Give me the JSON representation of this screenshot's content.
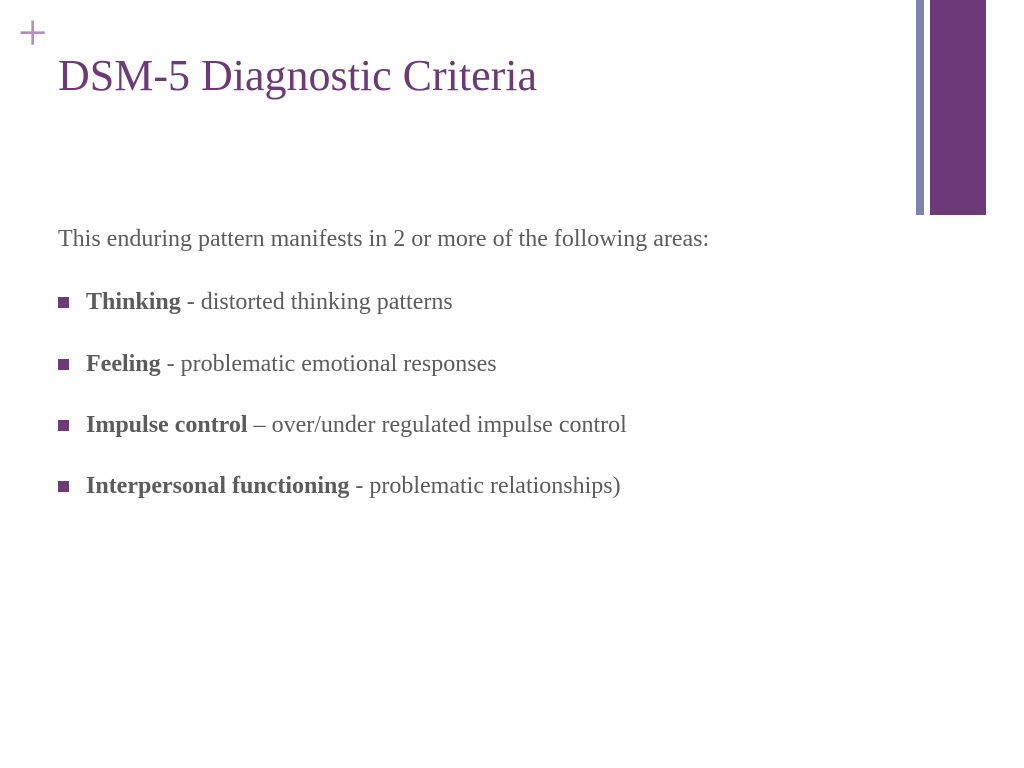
{
  "colors": {
    "title": "#6c3a77",
    "plus_icon": "#b58fbc",
    "bar_thin": "#7a84ad",
    "bar_thick": "#6c3a77",
    "body_text": "#5c5c5c",
    "bullet": "#6c3a77",
    "background": "#ffffff"
  },
  "typography": {
    "title_fontsize": 44,
    "body_fontsize": 24,
    "font_family": "Georgia, serif"
  },
  "plus_symbol": "+",
  "title": "DSM-5 Diagnostic Criteria",
  "intro": "This enduring pattern manifests in 2 or more of the following areas:",
  "bullets": [
    {
      "term": "Thinking",
      "sep": " - ",
      "desc": "distorted thinking patterns"
    },
    {
      "term": "Feeling",
      "sep": " - ",
      "desc": "problematic emotional responses"
    },
    {
      "term": "Impulse control",
      "sep": " – ",
      "desc": "over/under regulated impulse control"
    },
    {
      "term": "Interpersonal functioning",
      "sep": " - ",
      "desc": "problematic relationships)"
    }
  ]
}
